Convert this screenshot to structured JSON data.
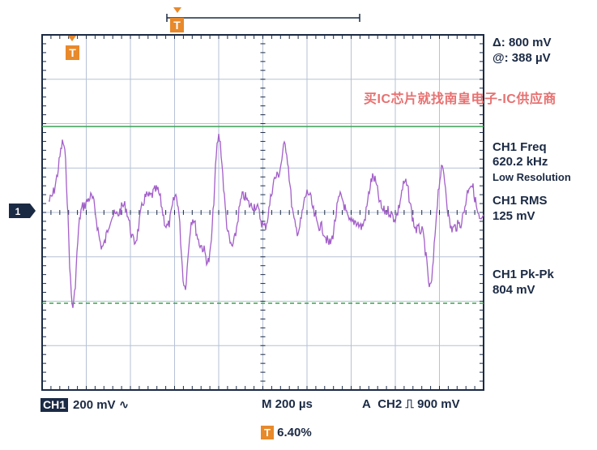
{
  "measurements": {
    "delta": "Δ: 800 mV",
    "at": "@: 388 µV",
    "freq_label": "CH1 Freq",
    "freq_value": "620.2 kHz",
    "freq_note": "Low Resolution",
    "rms_label": "CH1 RMS",
    "rms_value": "125 mV",
    "pkpk_label": "CH1 Pk-Pk",
    "pkpk_value": "804 mV"
  },
  "watermark": "买IC芯片就找南皇电子-IC供应商",
  "channel_marker": "1",
  "trigger_marker": "T",
  "bottom": {
    "channel_badge": "CH1",
    "volts_div": "200 mV",
    "coupling_symbol": "∿",
    "timebase": "M 200 µs",
    "trigger_mode": "A",
    "trigger_source": "CH2",
    "trigger_slope_symbol": "⎍",
    "trigger_level": "900 mV",
    "trigger_position": "6.40%"
  },
  "colors": {
    "grid_frame": "#1b2a44",
    "grid_lines": "#b6c2d6",
    "waveform": "#a35fc9",
    "cursor": "#3aa155",
    "trigger": "#e8892b"
  }
}
